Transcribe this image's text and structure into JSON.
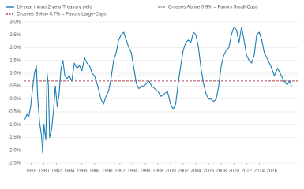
{
  "chart_data": {
    "type": "line",
    "x": [
      1977.0,
      1977.3,
      1977.6,
      1977.9,
      1978.2,
      1978.5,
      1978.8,
      1979.0,
      1979.3,
      1979.6,
      1979.8,
      1980.0,
      1980.3,
      1980.5,
      1980.7,
      1980.9,
      1981.2,
      1981.5,
      1981.8,
      1982.1,
      1982.4,
      1982.7,
      1983.0,
      1983.3,
      1983.6,
      1984.0,
      1984.4,
      1984.8,
      1985.2,
      1985.6,
      1986.0,
      1986.4,
      1986.8,
      1987.2,
      1987.6,
      1988.0,
      1988.5,
      1989.0,
      1989.4,
      1989.8,
      1990.2,
      1990.6,
      1991.0,
      1991.4,
      1991.8,
      1992.2,
      1992.6,
      1993.0,
      1993.4,
      1993.8,
      1994.2,
      1994.6,
      1995.0,
      1995.4,
      1995.8,
      1996.2,
      1996.6,
      1997.0,
      1997.5,
      1998.0,
      1998.5,
      1999.0,
      1999.5,
      2000.0,
      2000.4,
      2000.8,
      2001.2,
      2001.6,
      2002.0,
      2002.4,
      2002.8,
      2003.2,
      2003.6,
      2004.0,
      2004.4,
      2004.8,
      2005.2,
      2005.6,
      2006.0,
      2006.4,
      2006.8,
      2007.2,
      2007.6,
      2008.0,
      2008.4,
      2008.8,
      2009.2,
      2009.6,
      2010.0,
      2010.4,
      2010.8,
      2011.2,
      2011.6,
      2012.0,
      2012.4,
      2012.8,
      2013.2,
      2013.6,
      2014.0,
      2014.4,
      2014.8,
      2015.2,
      2015.8,
      2016.4,
      2016.9,
      2017.4,
      2017.9,
      2018.4,
      2018.8,
      2019.1
    ],
    "series": [
      {
        "name": "10-year minus 2-year Treasury yield",
        "color": "#1b7db3",
        "values": [
          -0.8,
          -0.6,
          -0.7,
          -0.3,
          0.4,
          1.0,
          1.3,
          0.1,
          -0.9,
          -1.4,
          -2.1,
          -1.0,
          -1.6,
          1.0,
          0.5,
          -1.5,
          -1.2,
          -0.5,
          0.5,
          -0.3,
          0.2,
          1.2,
          1.5,
          0.9,
          0.8,
          0.9,
          0.7,
          1.4,
          1.2,
          1.3,
          1.1,
          1.6,
          1.4,
          1.3,
          1.0,
          0.9,
          0.5,
          0.0,
          -0.2,
          0.1,
          0.3,
          0.8,
          1.5,
          1.8,
          2.3,
          2.5,
          2.6,
          2.3,
          2.0,
          1.8,
          1.2,
          0.6,
          0.4,
          0.5,
          0.5,
          0.6,
          0.7,
          0.5,
          0.4,
          0.3,
          0.1,
          0.2,
          0.3,
          -0.2,
          -0.4,
          -0.2,
          0.6,
          1.3,
          1.9,
          2.2,
          2.3,
          2.2,
          2.6,
          2.5,
          2.0,
          1.2,
          0.6,
          0.2,
          0.0,
          0.0,
          -0.1,
          0.0,
          0.5,
          1.3,
          1.7,
          1.9,
          2.0,
          2.5,
          2.8,
          2.7,
          2.2,
          2.8,
          2.3,
          1.7,
          1.5,
          1.4,
          1.7,
          2.5,
          2.6,
          2.3,
          1.8,
          1.6,
          1.3,
          0.9,
          1.2,
          0.95,
          0.7,
          0.55,
          0.7,
          0.5
        ]
      }
    ],
    "reference_lines": [
      {
        "name": "Crosses Above 0.9% = Favors Small-Caps",
        "value": 0.9,
        "color": "#8fa08f"
      },
      {
        "name": "Crosses Below 0.7% = Favors Large-Caps",
        "value": 0.7,
        "color": "#b5424f"
      }
    ],
    "xlim": [
      1976.8,
      2020.2
    ],
    "xticks": [
      1978,
      1980,
      1982,
      1984,
      1986,
      1988,
      1990,
      1992,
      1994,
      1996,
      1998,
      2000,
      2002,
      2004,
      2006,
      2008,
      2010,
      2012,
      2014,
      2016
    ],
    "ylim": [
      -2.5,
      3.0
    ],
    "yticks": [
      {
        "value": 3.0,
        "label": "3.0%"
      },
      {
        "value": 2.5,
        "label": "2.5%"
      },
      {
        "value": 2.0,
        "label": "2.0%"
      },
      {
        "value": 1.5,
        "label": "1.5%"
      },
      {
        "value": 1.0,
        "label": "1.0%"
      },
      {
        "value": 0.5,
        "label": "0.5%"
      },
      {
        "value": 0.0,
        "label": "0.0%"
      },
      {
        "value": -0.5,
        "label": "-0.5%"
      },
      {
        "value": -1.0,
        "label": "-1.0%"
      },
      {
        "value": -1.5,
        "label": "-1.5%"
      },
      {
        "value": -2.0,
        "label": "-2.0%"
      },
      {
        "value": -2.5,
        "label": "-2.5%"
      }
    ],
    "grid": true
  }
}
